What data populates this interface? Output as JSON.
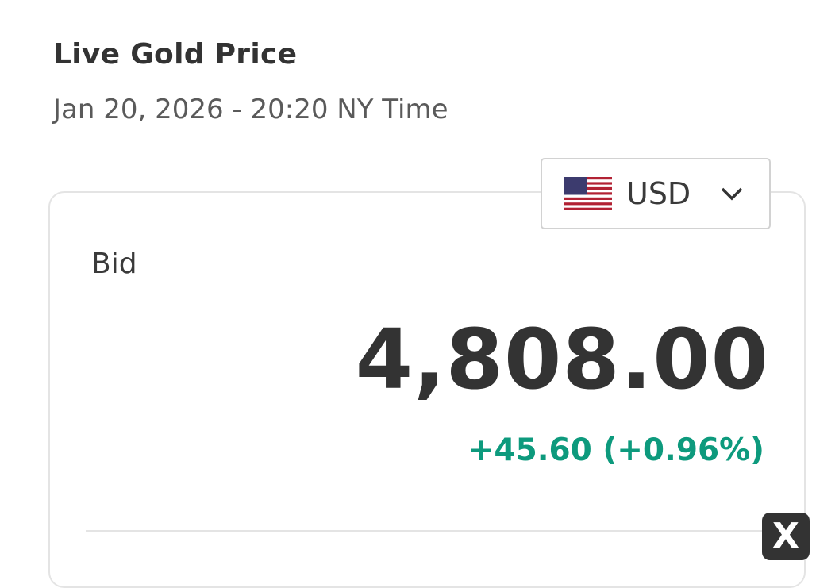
{
  "header": {
    "title": "Live Gold Price",
    "subtitle": "Jan 20, 2026 - 20:20 NY Time"
  },
  "currency_selector": {
    "selected": "USD",
    "flag_icon": "us-flag-icon",
    "chevron_icon": "chevron-down-icon"
  },
  "quote": {
    "label": "Bid",
    "price": "4,808.00",
    "change": "+45.60 (+0.96%)",
    "change_color": "#0d9a7d"
  },
  "close_button": {
    "label": "X"
  }
}
